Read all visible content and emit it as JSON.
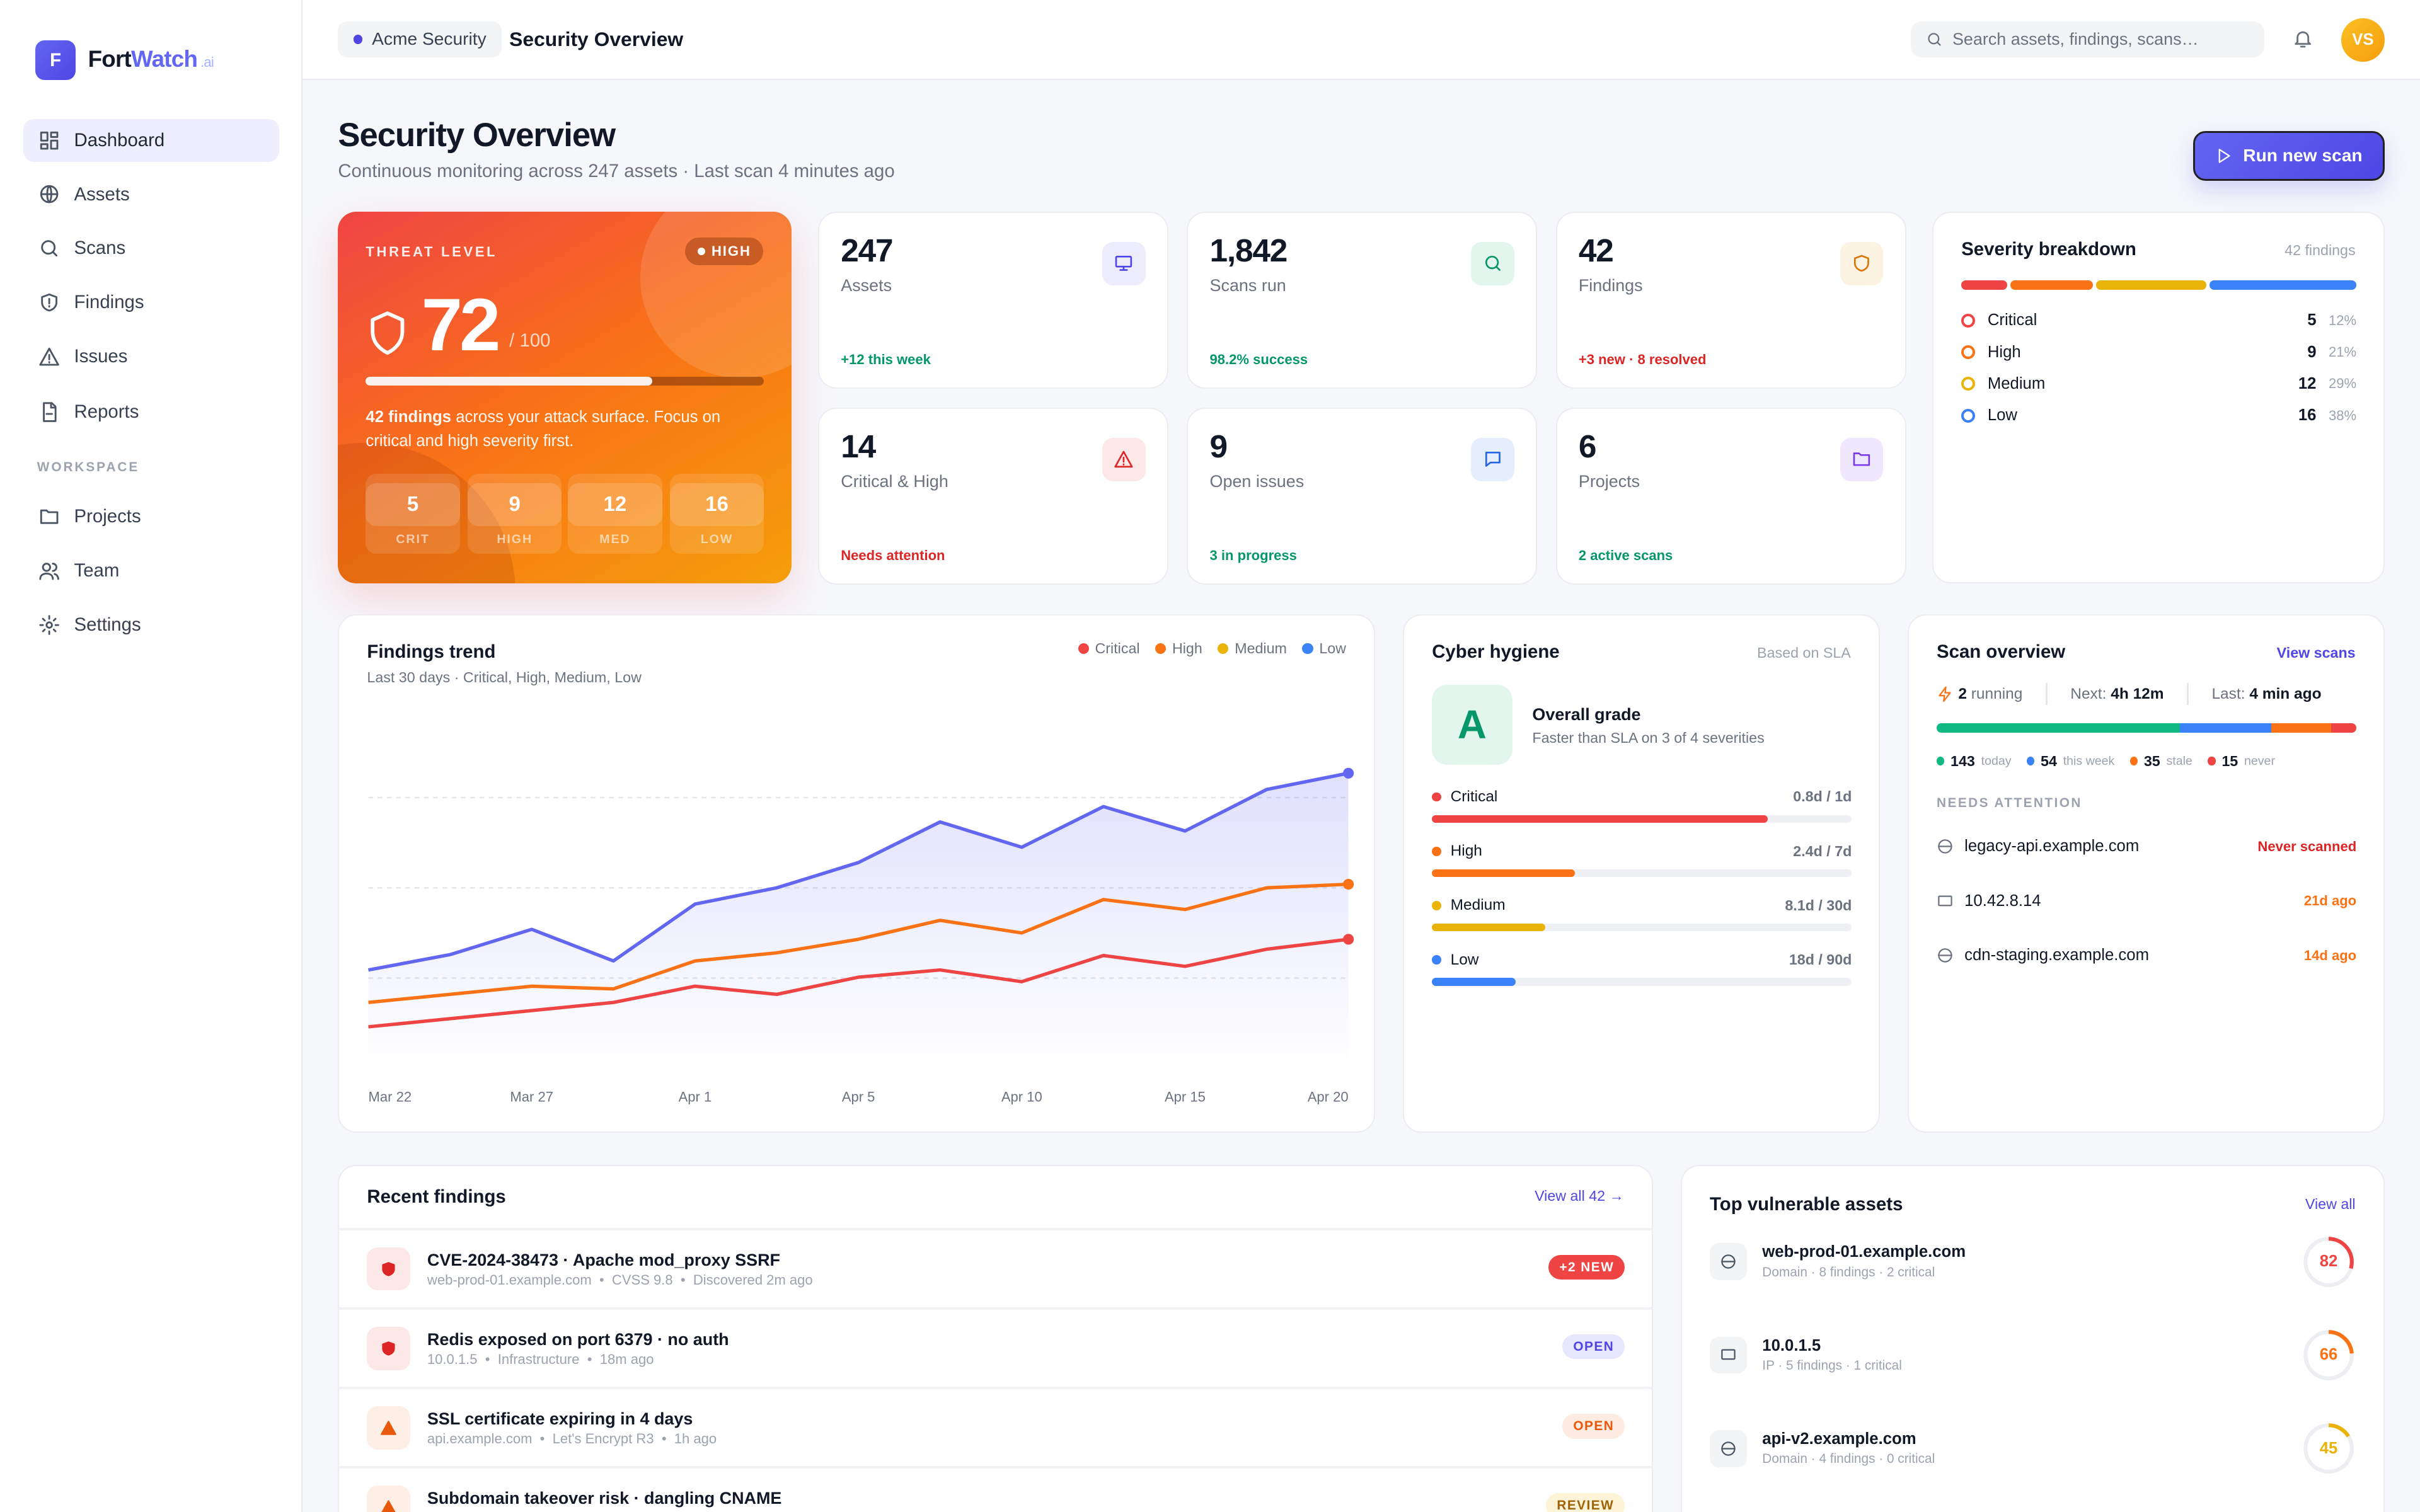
{
  "brand": {
    "initial": "F",
    "name_a": "Fort",
    "name_b": "Watch",
    "suffix": ".ai"
  },
  "sidebar": {
    "items": [
      {
        "label": "Dashboard",
        "icon": "dashboard-icon",
        "active": true
      },
      {
        "label": "Assets",
        "icon": "globe-icon"
      },
      {
        "label": "Scans",
        "icon": "search-icon"
      },
      {
        "label": "Findings",
        "icon": "shield-alert-icon"
      },
      {
        "label": "Issues",
        "icon": "warning-icon"
      },
      {
        "label": "Reports",
        "icon": "file-icon"
      }
    ],
    "section": "WORKSPACE",
    "workspace": [
      {
        "label": "Projects",
        "icon": "folder-icon"
      },
      {
        "label": "Team",
        "icon": "users-icon"
      },
      {
        "label": "Settings",
        "icon": "gear-icon"
      }
    ]
  },
  "header": {
    "org": "Acme Security",
    "title": "Security Overview",
    "search_placeholder": "Search assets, findings, scans…",
    "avatar": "VS"
  },
  "page": {
    "title": "Security Overview",
    "subtitle": "Continuous monitoring across 247 assets · Last scan 4 minutes ago",
    "run_button": "Run new scan"
  },
  "threat": {
    "label": "THREAT LEVEL",
    "badge": "HIGH",
    "score": "72",
    "out_of": "/ 100",
    "progress": 0.72,
    "desc_bold": "42 findings",
    "desc": " across your attack surface. Focus on critical and high severity first.",
    "counts": [
      {
        "n": "5",
        "l": "CRIT"
      },
      {
        "n": "9",
        "l": "HIGH"
      },
      {
        "n": "12",
        "l": "MED"
      },
      {
        "n": "16",
        "l": "LOW"
      }
    ]
  },
  "stats": [
    {
      "value": "247",
      "label": "Assets",
      "foot": "+12 this week",
      "foot_color": "#059669",
      "icon": "monitor-icon",
      "icon_color": "#4f46e5",
      "icon_bg": "#ececfd"
    },
    {
      "value": "1,842",
      "label": "Scans run",
      "foot": "98.2% success",
      "foot_color": "#059669",
      "icon": "search-icon",
      "icon_color": "#059669",
      "icon_bg": "#e3f6ee"
    },
    {
      "value": "42",
      "label": "Findings",
      "foot": "+3 new · 8 resolved",
      "foot_color": "#dc2626",
      "icon": "shield-icon",
      "icon_color": "#d97706",
      "icon_bg": "#fdf3e3"
    },
    {
      "value": "14",
      "label": "Critical & High",
      "foot": "Needs attention",
      "foot_color": "#dc2626",
      "icon": "warning-icon",
      "icon_color": "#dc2626",
      "icon_bg": "#fde8e8"
    },
    {
      "value": "9",
      "label": "Open issues",
      "foot": "3 in progress",
      "foot_color": "#059669",
      "icon": "message-icon",
      "icon_color": "#2563eb",
      "icon_bg": "#e5eefd"
    },
    {
      "value": "6",
      "label": "Projects",
      "foot": "2 active scans",
      "foot_color": "#059669",
      "icon": "folder-icon",
      "icon_color": "#7c3aed",
      "icon_bg": "#efe7fd"
    }
  ],
  "severity": {
    "title": "Severity breakdown",
    "meta": "42 findings",
    "rows": [
      {
        "name": "Critical",
        "count": "5",
        "pct": "12%",
        "value": 5,
        "color": "#ef4444"
      },
      {
        "name": "High",
        "count": "9",
        "pct": "21%",
        "value": 9,
        "color": "#f97316"
      },
      {
        "name": "Medium",
        "count": "12",
        "pct": "29%",
        "value": 12,
        "color": "#eab308"
      },
      {
        "name": "Low",
        "count": "16",
        "pct": "38%",
        "value": 16,
        "color": "#3b82f6"
      }
    ]
  },
  "trend": {
    "title": "Findings trend",
    "subtitle": "Last 30 days · Critical, High, Medium, Low",
    "legend": [
      {
        "name": "Critical",
        "color": "#ef4444"
      },
      {
        "name": "High",
        "color": "#f97316"
      },
      {
        "name": "Medium",
        "color": "#eab308"
      },
      {
        "name": "Low",
        "color": "#3b82f6"
      }
    ]
  },
  "chart_data": {
    "type": "line",
    "title": "Findings trend",
    "ylim": [
      0,
      40
    ],
    "grid": true,
    "legend": "top-right",
    "x_tick_labels": [
      "Mar 22",
      "",
      "Mar 27",
      "",
      "Apr 1",
      "",
      "Apr 5",
      "",
      "Apr 10",
      "",
      "Apr 15",
      "",
      "Apr 20"
    ],
    "series": [
      {
        "name": "Low",
        "color": "#6366f1",
        "area": true,
        "values": [
          10.9,
          12.6,
          15.4,
          11.9,
          18.2,
          20.0,
          22.8,
          27.3,
          24.5,
          29.0,
          26.3,
          30.9,
          32.7
        ]
      },
      {
        "name": "High",
        "color": "#f97316",
        "values": [
          7.3,
          8.2,
          9.1,
          8.8,
          11.9,
          12.8,
          14.3,
          16.4,
          15.0,
          18.7,
          17.6,
          20.0,
          20.4
        ]
      },
      {
        "name": "Critical",
        "color": "#ef4444",
        "values": [
          4.6,
          5.5,
          6.4,
          7.3,
          9.1,
          8.2,
          10.1,
          10.9,
          9.6,
          12.5,
          11.3,
          13.2,
          14.3
        ]
      }
    ]
  },
  "hygiene": {
    "title": "Cyber hygiene",
    "meta": "Based on SLA",
    "grade": "A",
    "grade_title": "Overall grade",
    "grade_sub": "Faster than SLA on 3 of 4 severities",
    "rows": [
      {
        "name": "Critical",
        "sla": "0.8d / 1d",
        "fill": 0.8,
        "color": "#ef4444"
      },
      {
        "name": "High",
        "sla": "2.4d / 7d",
        "fill": 0.34,
        "color": "#f97316"
      },
      {
        "name": "Medium",
        "sla": "8.1d / 30d",
        "fill": 0.27,
        "color": "#eab308"
      },
      {
        "name": "Low",
        "sla": "18d / 90d",
        "fill": 0.2,
        "color": "#3b82f6"
      }
    ]
  },
  "scan": {
    "title": "Scan overview",
    "link": "View scans",
    "running_n": "2",
    "running": "running",
    "next_label": "Next:",
    "next": "4h 12m",
    "last_label": "Last:",
    "last": "4 min ago",
    "segments": [
      {
        "n": "143",
        "l": "today",
        "value": 143,
        "color": "#10b981"
      },
      {
        "n": "54",
        "l": "this week",
        "value": 54,
        "color": "#3b82f6"
      },
      {
        "n": "35",
        "l": "stale",
        "value": 35,
        "color": "#f97316"
      },
      {
        "n": "15",
        "l": "never",
        "value": 15,
        "color": "#ef4444"
      }
    ],
    "attention_label": "NEEDS ATTENTION",
    "attention": [
      {
        "name": "legacy-api.example.com",
        "status": "Never scanned",
        "color": "#dc2626",
        "icon": "globe-icon"
      },
      {
        "name": "10.42.8.14",
        "status": "21d ago",
        "color": "#f97316",
        "icon": "server-icon"
      },
      {
        "name": "cdn-staging.example.com",
        "status": "14d ago",
        "color": "#f97316",
        "icon": "globe-icon"
      }
    ]
  },
  "recent": {
    "title": "Recent findings",
    "link": "View all 42 →",
    "items": [
      {
        "title": "CVE-2024-38473 · Apache mod_proxy SSRF",
        "meta": "web-prod-01.example.com  •  CVSS 9.8  •  Discovered 2m ago",
        "badge": "+2 NEW",
        "badge_bg": "#ef4444",
        "badge_fg": "#ffffff",
        "icon": "shield-alert-icon",
        "icon_color": "#dc2626",
        "icon_bg": "#fde8e8"
      },
      {
        "title": "Redis exposed on port 6379 · no auth",
        "meta": "10.0.1.5  •  Infrastructure  •  18m ago",
        "badge": "OPEN",
        "badge_bg": "#e6e7fd",
        "badge_fg": "#4f46e5",
        "icon": "shield-icon",
        "icon_color": "#dc2626",
        "icon_bg": "#fde8e8"
      },
      {
        "title": "SSL certificate expiring in 4 days",
        "meta": "api.example.com  •  Let's Encrypt R3  •  1h ago",
        "badge": "OPEN",
        "badge_bg": "#feece2",
        "badge_fg": "#ea580c",
        "icon": "warning-icon",
        "icon_color": "#ea580c",
        "icon_bg": "#feefe6"
      },
      {
        "title": "Subdomain takeover risk · dangling CNAME",
        "meta": "",
        "badge": "REVIEW",
        "badge_bg": "#fdf3d6",
        "badge_fg": "#a16207",
        "icon": "warning-icon",
        "icon_color": "#ea580c",
        "icon_bg": "#feefe6"
      }
    ]
  },
  "vulnerable": {
    "title": "Top vulnerable assets",
    "link": "View all",
    "items": [
      {
        "name": "web-prod-01.example.com",
        "meta": "Domain · 8 findings · 2 critical",
        "score": 82,
        "color": "#ef4444",
        "icon": "globe-icon"
      },
      {
        "name": "10.0.1.5",
        "meta": "IP · 5 findings · 1 critical",
        "score": 66,
        "color": "#f97316",
        "icon": "server-icon"
      },
      {
        "name": "api-v2.example.com",
        "meta": "Domain · 4 findings · 0 critical",
        "score": 45,
        "color": "#eab308",
        "icon": "globe-icon"
      }
    ]
  }
}
